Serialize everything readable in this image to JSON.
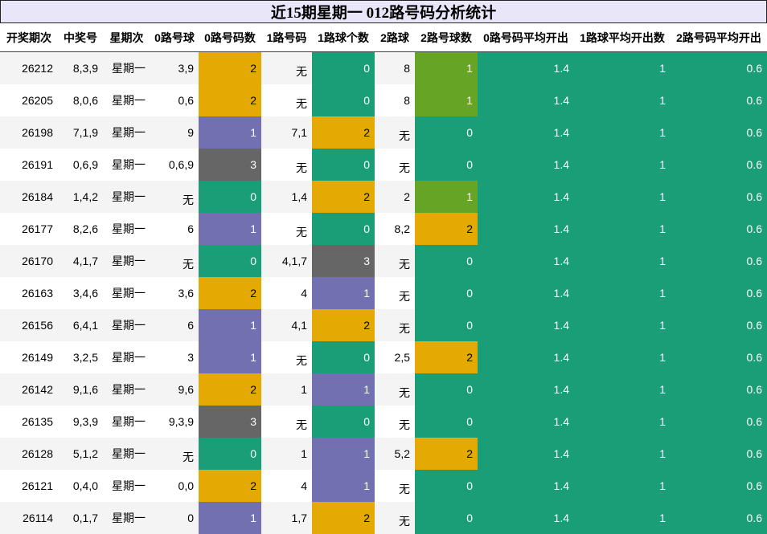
{
  "title": "近15期星期一 012路号码分析统计",
  "headers": [
    "开奖期次",
    "中奖号",
    "星期次",
    "0路号球",
    "0路号码数",
    "1路号码",
    "1路球个数",
    "2路球",
    "2路号球数",
    "0路号码平均开出",
    "1路球平均开出数",
    "2路号码平均开出"
  ],
  "rows": [
    [
      "26212",
      "8,3,9",
      "星期一",
      "3,9",
      "2",
      "无",
      "0",
      "8",
      "1",
      "1.4",
      "1",
      "0.6"
    ],
    [
      "26205",
      "8,0,6",
      "星期一",
      "0,6",
      "2",
      "无",
      "0",
      "8",
      "1",
      "1.4",
      "1",
      "0.6"
    ],
    [
      "26198",
      "7,1,9",
      "星期一",
      "9",
      "1",
      "7,1",
      "2",
      "无",
      "0",
      "1.4",
      "1",
      "0.6"
    ],
    [
      "26191",
      "0,6,9",
      "星期一",
      "0,6,9",
      "3",
      "无",
      "0",
      "无",
      "0",
      "1.4",
      "1",
      "0.6"
    ],
    [
      "26184",
      "1,4,2",
      "星期一",
      "无",
      "0",
      "1,4",
      "2",
      "2",
      "1",
      "1.4",
      "1",
      "0.6"
    ],
    [
      "26177",
      "8,2,6",
      "星期一",
      "6",
      "1",
      "无",
      "0",
      "8,2",
      "2",
      "1.4",
      "1",
      "0.6"
    ],
    [
      "26170",
      "4,1,7",
      "星期一",
      "无",
      "0",
      "4,1,7",
      "3",
      "无",
      "0",
      "1.4",
      "1",
      "0.6"
    ],
    [
      "26163",
      "3,4,6",
      "星期一",
      "3,6",
      "2",
      "4",
      "1",
      "无",
      "0",
      "1.4",
      "1",
      "0.6"
    ],
    [
      "26156",
      "6,4,1",
      "星期一",
      "6",
      "1",
      "4,1",
      "2",
      "无",
      "0",
      "1.4",
      "1",
      "0.6"
    ],
    [
      "26149",
      "3,2,5",
      "星期一",
      "3",
      "1",
      "无",
      "0",
      "2,5",
      "2",
      "1.4",
      "1",
      "0.6"
    ],
    [
      "26142",
      "9,1,6",
      "星期一",
      "9,6",
      "2",
      "1",
      "1",
      "无",
      "0",
      "1.4",
      "1",
      "0.6"
    ],
    [
      "26135",
      "9,3,9",
      "星期一",
      "9,3,9",
      "3",
      "无",
      "0",
      "无",
      "0",
      "1.4",
      "1",
      "0.6"
    ],
    [
      "26128",
      "5,1,2",
      "星期一",
      "无",
      "0",
      "1",
      "1",
      "5,2",
      "2",
      "1.4",
      "1",
      "0.6"
    ],
    [
      "26121",
      "0,4,0",
      "星期一",
      "0,0",
      "2",
      "4",
      "1",
      "无",
      "0",
      "1.4",
      "1",
      "0.6"
    ],
    [
      "26114",
      "0,1,7",
      "星期一",
      "0",
      "1",
      "1,7",
      "2",
      "无",
      "0",
      "1.4",
      "1",
      "0.6"
    ]
  ],
  "colors": {
    "count_0": "#199e78",
    "count_1": "#7370b2",
    "count_2": "#e4a902",
    "count_3": "#666666",
    "route2_count_1": "#65a425",
    "average": "#199e78"
  }
}
